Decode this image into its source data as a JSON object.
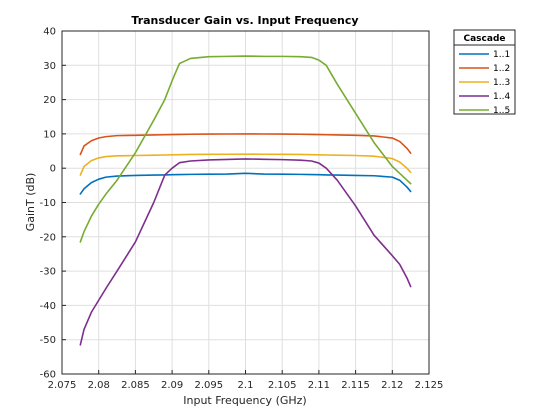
{
  "chart_data": {
    "type": "line",
    "title": "Transducer Gain vs. Input Frequency",
    "xlabel": "Input Frequency (GHz)",
    "ylabel": "GainT (dB)",
    "xlim": [
      2.075,
      2.125
    ],
    "ylim": [
      -60,
      40
    ],
    "x_ticks": [
      2.075,
      2.08,
      2.085,
      2.09,
      2.095,
      2.1,
      2.105,
      2.11,
      2.115,
      2.12,
      2.125
    ],
    "x_tick_labels": [
      "2.075",
      "2.08",
      "2.085",
      "2.09",
      "2.095",
      "2.1",
      "2.105",
      "2.11",
      "2.115",
      "2.12",
      "2.125"
    ],
    "y_ticks": [
      -60,
      -50,
      -40,
      -30,
      -20,
      -10,
      0,
      10,
      20,
      30,
      40
    ],
    "y_tick_labels": [
      "-60",
      "-50",
      "-40",
      "-30",
      "-20",
      "-10",
      "0",
      "10",
      "20",
      "30",
      "40"
    ],
    "grid": true,
    "legend_title": "Cascade",
    "legend_position": "outside-top-right",
    "x": [
      2.0775,
      2.078,
      2.079,
      2.08,
      2.081,
      2.0825,
      2.085,
      2.0875,
      2.089,
      2.09,
      2.091,
      2.0925,
      2.095,
      2.0975,
      2.1,
      2.1025,
      2.105,
      2.1075,
      2.109,
      2.11,
      2.111,
      2.1125,
      2.115,
      2.1175,
      2.12,
      2.121,
      2.122,
      2.1225
    ],
    "series": [
      {
        "name": "1..1",
        "color": "#0072BD",
        "values": [
          -7.5,
          -6,
          -4.2,
          -3.2,
          -2.6,
          -2.3,
          -2.1,
          -2,
          -1.95,
          -1.9,
          -1.85,
          -1.8,
          -1.75,
          -1.7,
          -1.5,
          -1.7,
          -1.75,
          -1.8,
          -1.85,
          -1.9,
          -1.95,
          -2,
          -2.1,
          -2.2,
          -2.6,
          -3.5,
          -5.5,
          -6.8
        ]
      },
      {
        "name": "1..2",
        "color": "#D95319",
        "values": [
          4,
          6.5,
          8,
          8.8,
          9.2,
          9.5,
          9.6,
          9.7,
          9.75,
          9.8,
          9.85,
          9.9,
          9.95,
          9.97,
          10,
          9.97,
          9.95,
          9.9,
          9.85,
          9.8,
          9.75,
          9.7,
          9.6,
          9.4,
          8.8,
          7.8,
          5.8,
          4.4
        ]
      },
      {
        "name": "1..3",
        "color": "#EDB120",
        "values": [
          -2,
          0.5,
          2.2,
          3,
          3.4,
          3.6,
          3.7,
          3.8,
          3.85,
          3.9,
          3.95,
          4,
          4.05,
          4.07,
          4.1,
          4.07,
          4.05,
          4,
          3.95,
          3.9,
          3.85,
          3.8,
          3.7,
          3.5,
          2.8,
          1.8,
          0,
          -1.2
        ]
      },
      {
        "name": "1..4",
        "color": "#7E2F8E",
        "values": [
          -51.5,
          -47,
          -42,
          -38.5,
          -35,
          -30,
          -21.5,
          -10,
          -2,
          0,
          1.6,
          2.1,
          2.4,
          2.55,
          2.7,
          2.6,
          2.5,
          2.35,
          2.1,
          1.5,
          0,
          -3.5,
          -11,
          -19.5,
          -25.5,
          -28,
          -32,
          -34.5
        ]
      },
      {
        "name": "1..5",
        "color": "#77AC30",
        "values": [
          -21.5,
          -18.5,
          -14,
          -10.5,
          -7.5,
          -3.5,
          4.5,
          14,
          20,
          25.5,
          30.5,
          32,
          32.5,
          32.6,
          32.7,
          32.6,
          32.6,
          32.5,
          32.3,
          31.5,
          30,
          24.5,
          16,
          7.5,
          0.5,
          -1.5,
          -3.5,
          -4.5
        ]
      }
    ]
  }
}
